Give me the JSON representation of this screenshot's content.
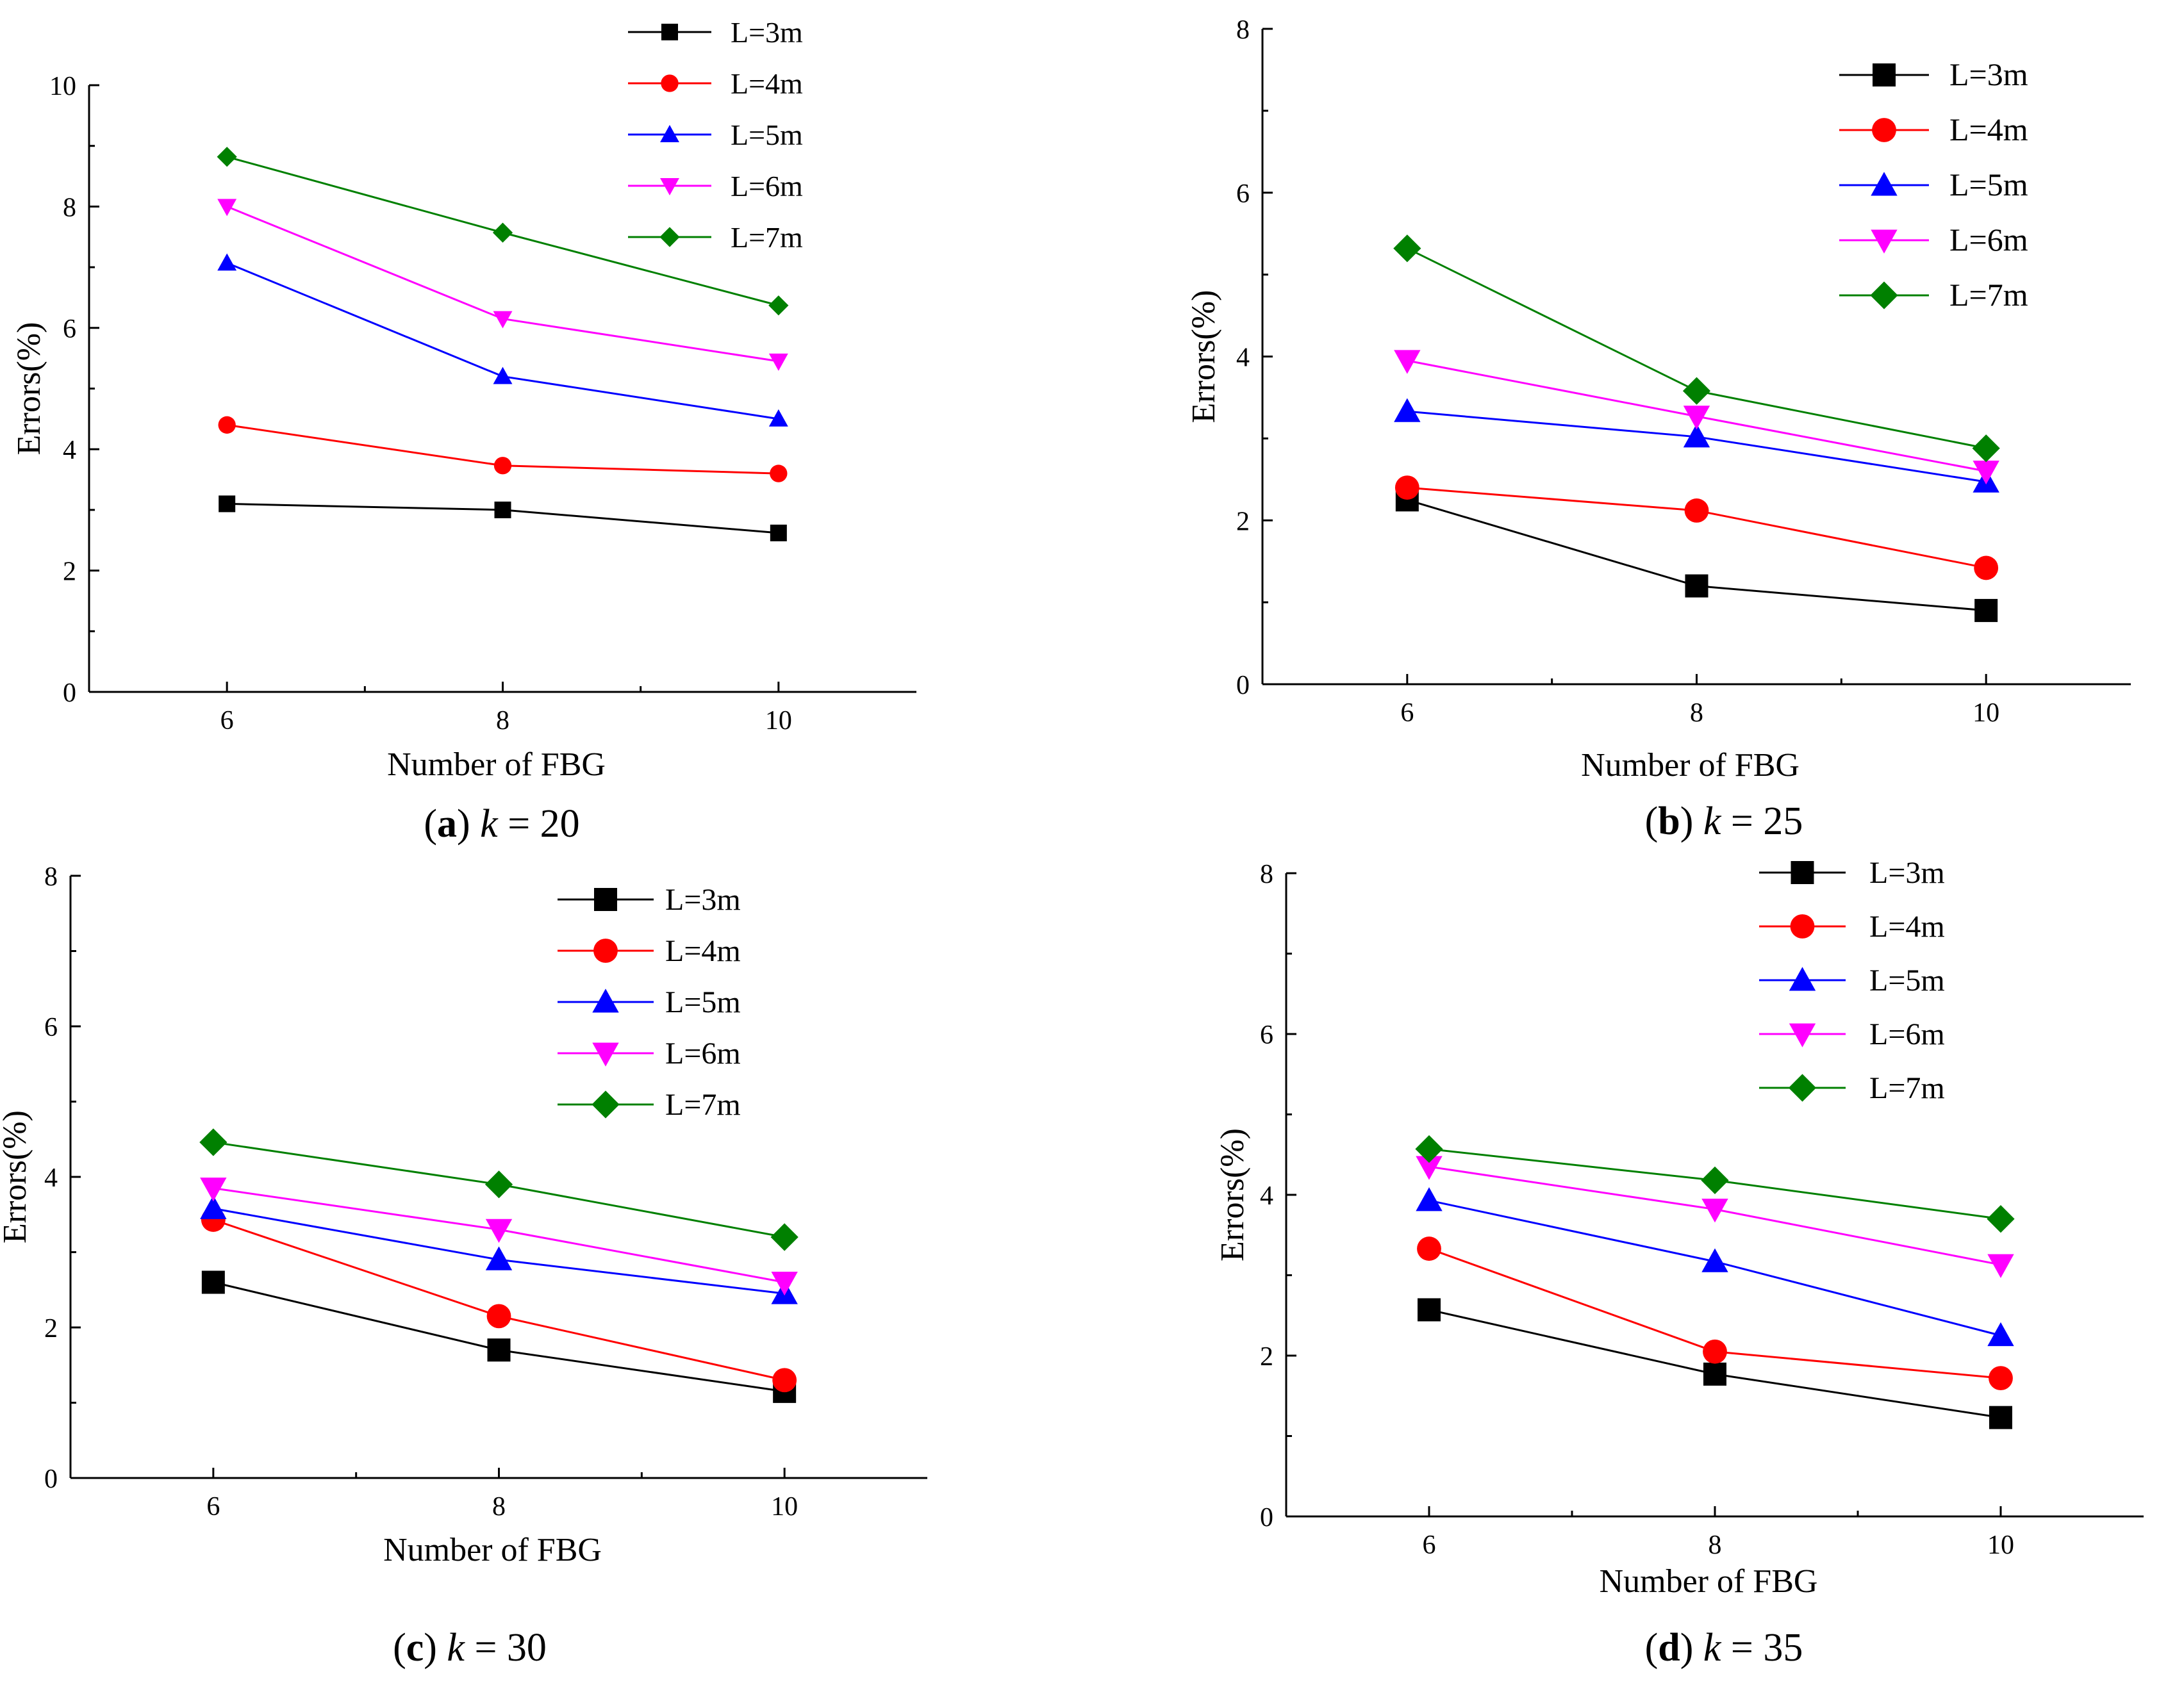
{
  "chart_data": [
    {
      "id": "a",
      "type": "line",
      "caption_letter": "a",
      "caption_var": "k",
      "caption_eq": " = ",
      "caption_value": "20",
      "xlabel": "Number of FBG",
      "ylabel": "Errors(%)",
      "xlim": [
        5,
        11
      ],
      "ylim": [
        0,
        10
      ],
      "x_ticks": [
        6,
        8,
        10
      ],
      "y_ticks": [
        0,
        2,
        4,
        6,
        8,
        10
      ],
      "x": [
        6,
        8,
        10
      ],
      "series": [
        {
          "name": "L=3m",
          "color": "#000000",
          "marker": "square",
          "values": [
            3.1,
            3.0,
            2.62
          ]
        },
        {
          "name": "L=4m",
          "color": "#ff0000",
          "marker": "circle",
          "values": [
            4.4,
            3.73,
            3.6
          ]
        },
        {
          "name": "L=5m",
          "color": "#0000ff",
          "marker": "triangle-up",
          "values": [
            7.07,
            5.2,
            4.5
          ]
        },
        {
          "name": "L=6m",
          "color": "#ff00ff",
          "marker": "triangle-down",
          "values": [
            8.0,
            6.15,
            5.45
          ]
        },
        {
          "name": "L=7m",
          "color": "#008000",
          "marker": "diamond",
          "values": [
            8.82,
            7.57,
            6.37
          ]
        }
      ]
    },
    {
      "id": "b",
      "type": "line",
      "caption_letter": "b",
      "caption_var": "k",
      "caption_eq": " = ",
      "caption_value": "25",
      "xlabel": "Number of FBG",
      "ylabel": "Errors(%)",
      "xlim": [
        5,
        11
      ],
      "ylim": [
        0,
        8
      ],
      "x_ticks": [
        6,
        8,
        10
      ],
      "y_ticks": [
        0,
        2,
        4,
        6,
        8
      ],
      "x": [
        6,
        8,
        10
      ],
      "series": [
        {
          "name": "L=3m",
          "color": "#000000",
          "marker": "square",
          "values": [
            2.25,
            1.2,
            0.9
          ]
        },
        {
          "name": "L=4m",
          "color": "#ff0000",
          "marker": "circle",
          "values": [
            2.4,
            2.12,
            1.42
          ]
        },
        {
          "name": "L=5m",
          "color": "#0000ff",
          "marker": "triangle-up",
          "values": [
            3.33,
            3.02,
            2.47
          ]
        },
        {
          "name": "L=6m",
          "color": "#ff00ff",
          "marker": "triangle-down",
          "values": [
            3.95,
            3.27,
            2.6
          ]
        },
        {
          "name": "L=7m",
          "color": "#008000",
          "marker": "diamond",
          "values": [
            5.32,
            3.58,
            2.88
          ]
        }
      ]
    },
    {
      "id": "c",
      "type": "line",
      "caption_letter": "c",
      "caption_var": "k",
      "caption_eq": " = ",
      "caption_value": "30",
      "xlabel": "Number of FBG",
      "ylabel": "Errors(%)",
      "xlim": [
        5,
        11
      ],
      "ylim": [
        0,
        8
      ],
      "x_ticks": [
        6,
        8,
        10
      ],
      "y_ticks": [
        0,
        2,
        4,
        6,
        8
      ],
      "x": [
        6,
        8,
        10
      ],
      "series": [
        {
          "name": "L=3m",
          "color": "#000000",
          "marker": "square",
          "values": [
            2.6,
            1.7,
            1.15
          ]
        },
        {
          "name": "L=4m",
          "color": "#ff0000",
          "marker": "circle",
          "values": [
            3.43,
            2.15,
            1.3
          ]
        },
        {
          "name": "L=5m",
          "color": "#0000ff",
          "marker": "triangle-up",
          "values": [
            3.58,
            2.9,
            2.45
          ]
        },
        {
          "name": "L=6m",
          "color": "#ff00ff",
          "marker": "triangle-down",
          "values": [
            3.85,
            3.3,
            2.6
          ]
        },
        {
          "name": "L=7m",
          "color": "#008000",
          "marker": "diamond",
          "values": [
            4.46,
            3.9,
            3.2
          ]
        }
      ]
    },
    {
      "id": "d",
      "type": "line",
      "caption_letter": "d",
      "caption_var": "k",
      "caption_eq": " = ",
      "caption_value": "35",
      "xlabel": "Number of FBG",
      "ylabel": "Errors(%)",
      "xlim": [
        5,
        11
      ],
      "ylim": [
        0,
        8
      ],
      "x_ticks": [
        6,
        8,
        10
      ],
      "y_ticks": [
        0,
        2,
        4,
        6,
        8
      ],
      "x": [
        6,
        8,
        10
      ],
      "series": [
        {
          "name": "L=3m",
          "color": "#000000",
          "marker": "square",
          "values": [
            2.57,
            1.77,
            1.23
          ]
        },
        {
          "name": "L=4m",
          "color": "#ff0000",
          "marker": "circle",
          "values": [
            3.33,
            2.05,
            1.72
          ]
        },
        {
          "name": "L=5m",
          "color": "#0000ff",
          "marker": "triangle-up",
          "values": [
            3.93,
            3.17,
            2.25
          ]
        },
        {
          "name": "L=6m",
          "color": "#ff00ff",
          "marker": "triangle-down",
          "values": [
            4.35,
            3.82,
            3.13
          ]
        },
        {
          "name": "L=7m",
          "color": "#008000",
          "marker": "diamond",
          "values": [
            4.57,
            4.18,
            3.7
          ]
        }
      ]
    }
  ]
}
